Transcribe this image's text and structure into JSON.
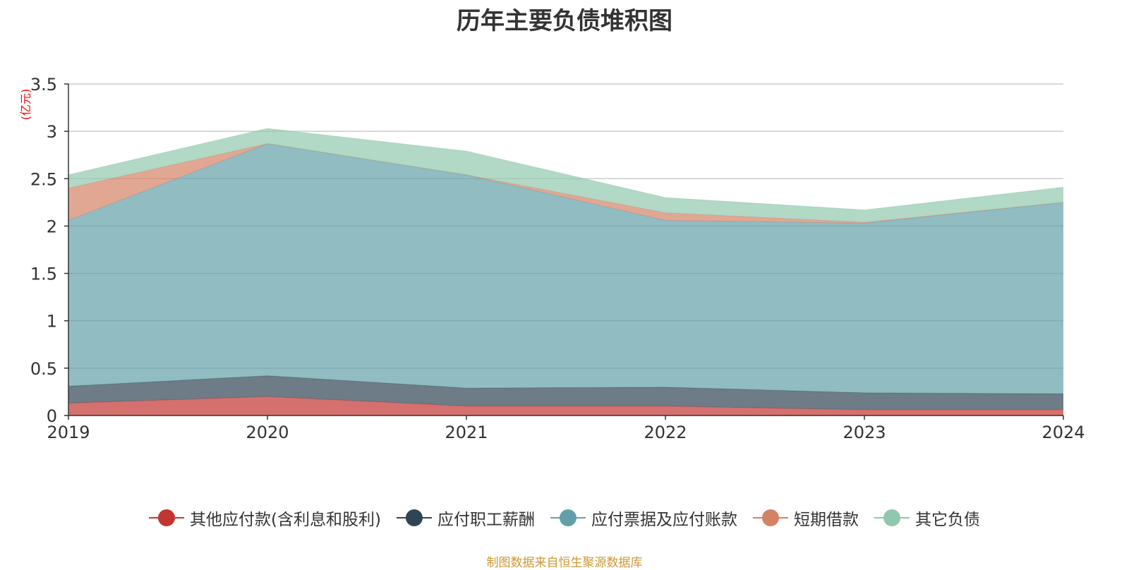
{
  "chart_data": {
    "type": "area",
    "stacked": true,
    "title": "历年主要负债堆积图",
    "ylabel": "(亿元)",
    "x": [
      "2019",
      "2020",
      "2021",
      "2022",
      "2023",
      "2024"
    ],
    "ylim": [
      0,
      3.5
    ],
    "yticks": [
      "0",
      "0.5",
      "1",
      "1.5",
      "2",
      "2.5",
      "3",
      "3.5"
    ],
    "grid": true,
    "legend_position": "bottom",
    "series": [
      {
        "name": "其他应付款(含利息和股利)",
        "color": "#c23531",
        "values": [
          0.13,
          0.2,
          0.1,
          0.1,
          0.06,
          0.06
        ]
      },
      {
        "name": "应付职工薪酬",
        "color": "#2f4554",
        "values": [
          0.18,
          0.22,
          0.19,
          0.2,
          0.18,
          0.17
        ]
      },
      {
        "name": "应付票据及应付账款",
        "color": "#61a0a8",
        "values": [
          1.75,
          2.45,
          2.25,
          1.76,
          1.79,
          2.02
        ]
      },
      {
        "name": "短期借款",
        "color": "#d48265",
        "values": [
          0.34,
          0.0,
          0.0,
          0.08,
          0.01,
          0.0
        ]
      },
      {
        "name": "其它负债",
        "color": "#91c7ae",
        "values": [
          0.14,
          0.16,
          0.25,
          0.16,
          0.13,
          0.16
        ]
      }
    ]
  },
  "source_note": "制图数据来自恒生聚源数据库",
  "colors": {
    "title": "#333333",
    "axis": "#333333",
    "grid": "#cccccc",
    "ylabel": "#ff0000",
    "source_note": "#cc9933"
  }
}
